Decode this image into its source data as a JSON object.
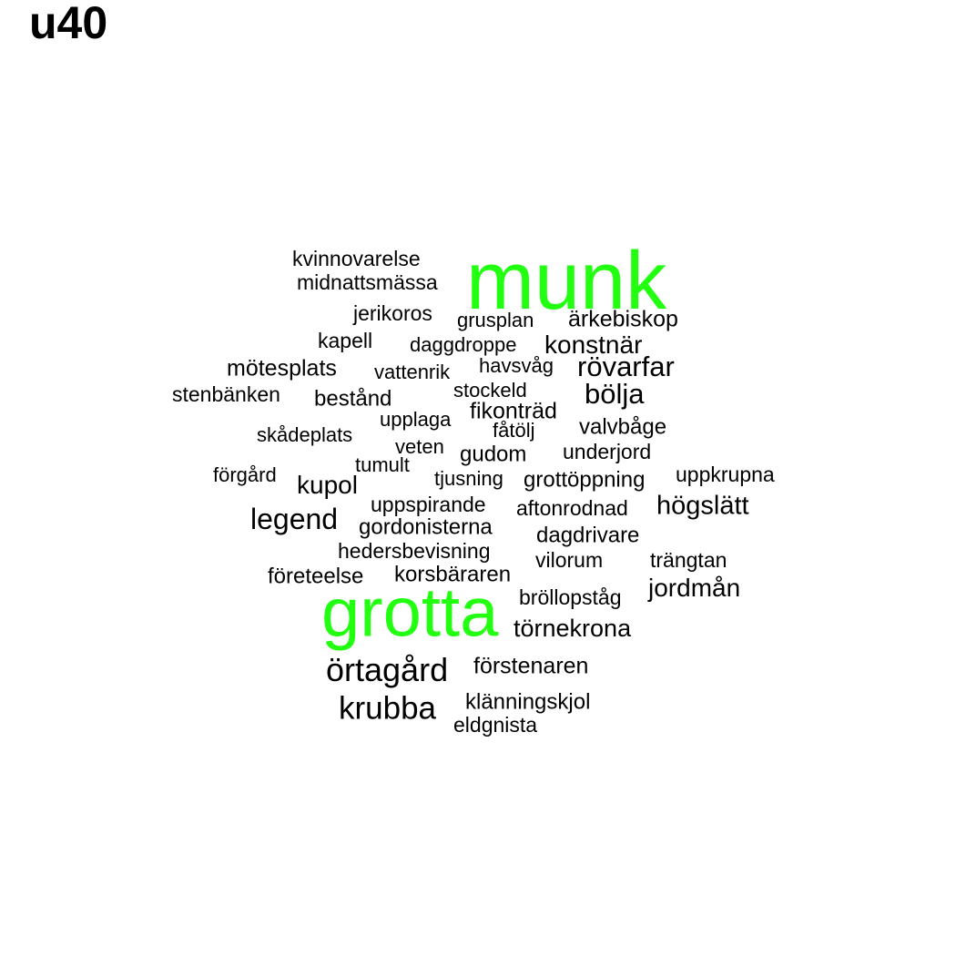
{
  "title": "u40",
  "colors": {
    "highlight": "#22ff11",
    "normal": "#000000"
  },
  "words": [
    {
      "text": "munk",
      "highlight": true
    },
    {
      "text": "kvinnovarelse",
      "highlight": false
    },
    {
      "text": "midnattsmässa",
      "highlight": false
    },
    {
      "text": "jerikoros",
      "highlight": false
    },
    {
      "text": "grusplan",
      "highlight": false
    },
    {
      "text": "ärkebiskop",
      "highlight": false
    },
    {
      "text": "kapell",
      "highlight": false
    },
    {
      "text": "daggdroppe",
      "highlight": false
    },
    {
      "text": "konstnär",
      "highlight": false
    },
    {
      "text": "mötesplats",
      "highlight": false
    },
    {
      "text": "vattenrik",
      "highlight": false
    },
    {
      "text": "havsvåg",
      "highlight": false
    },
    {
      "text": "rövarfar",
      "highlight": false
    },
    {
      "text": "stenbänken",
      "highlight": false
    },
    {
      "text": "bestånd",
      "highlight": false
    },
    {
      "text": "stockeld",
      "highlight": false
    },
    {
      "text": "bölja",
      "highlight": false
    },
    {
      "text": "fikonträd",
      "highlight": false
    },
    {
      "text": "upplaga",
      "highlight": false
    },
    {
      "text": "fåtölj",
      "highlight": false
    },
    {
      "text": "valvbåge",
      "highlight": false
    },
    {
      "text": "skådeplats",
      "highlight": false
    },
    {
      "text": "veten",
      "highlight": false
    },
    {
      "text": "gudom",
      "highlight": false
    },
    {
      "text": "underjord",
      "highlight": false
    },
    {
      "text": "tumult",
      "highlight": false
    },
    {
      "text": "förgård",
      "highlight": false
    },
    {
      "text": "kupol",
      "highlight": false
    },
    {
      "text": "tjusning",
      "highlight": false
    },
    {
      "text": "grottöppning",
      "highlight": false
    },
    {
      "text": "uppkrupna",
      "highlight": false
    },
    {
      "text": "uppspirande",
      "highlight": false
    },
    {
      "text": "aftonrodnad",
      "highlight": false
    },
    {
      "text": "högslätt",
      "highlight": false
    },
    {
      "text": "legend",
      "highlight": false
    },
    {
      "text": "gordonisterna",
      "highlight": false
    },
    {
      "text": "dagdrivare",
      "highlight": false
    },
    {
      "text": "hedersbevisning",
      "highlight": false
    },
    {
      "text": "vilorum",
      "highlight": false
    },
    {
      "text": "trängtan",
      "highlight": false
    },
    {
      "text": "företeelse",
      "highlight": false
    },
    {
      "text": "korsbäraren",
      "highlight": false
    },
    {
      "text": "jordmån",
      "highlight": false
    },
    {
      "text": "bröllopståg",
      "highlight": false
    },
    {
      "text": "grotta",
      "highlight": true
    },
    {
      "text": "törnekrona",
      "highlight": false
    },
    {
      "text": "örtagård",
      "highlight": false
    },
    {
      "text": "förstenaren",
      "highlight": false
    },
    {
      "text": "krubba",
      "highlight": false
    },
    {
      "text": "klänningskjol",
      "highlight": false
    },
    {
      "text": "eldgnista",
      "highlight": false
    }
  ]
}
